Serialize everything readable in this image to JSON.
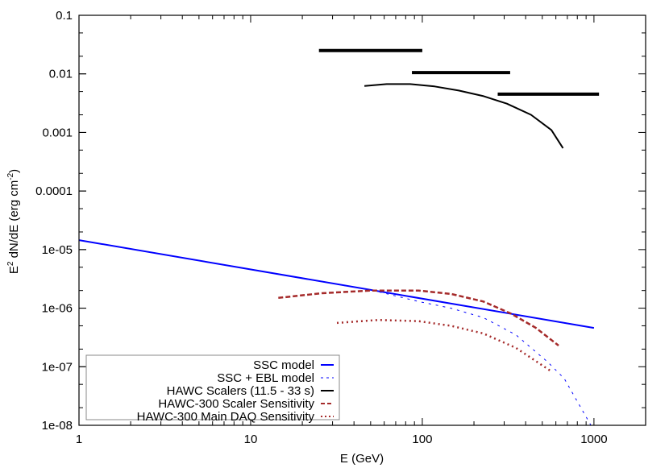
{
  "chart_data": {
    "type": "line",
    "title": "",
    "xlabel": "E (GeV)",
    "ylabel": "E^2 dN/dE (erg cm^-2)",
    "ylabel_parts": {
      "base": "E",
      "sup1": "2",
      "mid": " dN/dE (erg cm",
      "sup2": "-2",
      "end": ")"
    },
    "xscale": "log",
    "yscale": "log",
    "xlim": [
      1,
      2000
    ],
    "ylim": [
      1e-08,
      0.1
    ],
    "grid": false,
    "legend_position": "lower left",
    "x_ticks": [
      {
        "value": 1,
        "label": "1"
      },
      {
        "value": 10,
        "label": "10"
      },
      {
        "value": 100,
        "label": "100"
      },
      {
        "value": 1000,
        "label": "1000"
      }
    ],
    "y_ticks": [
      {
        "value": 0.1,
        "label": "0.1"
      },
      {
        "value": 0.01,
        "label": "0.01"
      },
      {
        "value": 0.001,
        "label": "0.001"
      },
      {
        "value": 0.0001,
        "label": "0.0001"
      },
      {
        "value": 1e-05,
        "label": "1e-05"
      },
      {
        "value": 1e-06,
        "label": "1e-06"
      },
      {
        "value": 1e-07,
        "label": "1e-07"
      },
      {
        "value": 1e-08,
        "label": "1e-08"
      }
    ],
    "series": [
      {
        "name": "SSC model",
        "color": "#0000ff",
        "style": "solid",
        "width": 2,
        "x": [
          1,
          1000
        ],
        "y": [
          1.45e-05,
          4.6e-07
        ]
      },
      {
        "name": "SSC + EBL model",
        "color": "#0000ff",
        "style": "dashed-fine",
        "width": 1,
        "x": [
          1,
          52,
          95,
          147,
          227,
          351,
          538,
          671,
          960
        ],
        "y": [
          1.45e-05,
          2e-06,
          1.3e-06,
          1e-06,
          6.9e-07,
          3.5e-07,
          1.2e-07,
          6.3e-08,
          1e-08
        ]
      },
      {
        "name": "HAWC Scalers (11.5 - 33 s)",
        "color": "#000000",
        "style": "solid",
        "width": 2,
        "x": [
          46,
          62,
          85,
          118,
          163,
          225,
          311,
          430,
          565,
          660
        ],
        "y": [
          0.0062,
          0.0067,
          0.0067,
          0.0061,
          0.0052,
          0.0042,
          0.0031,
          0.002,
          0.0011,
          0.00054
        ]
      },
      {
        "name": "HAWC-300 Scaler Sensitivity",
        "color": "#a52a2a",
        "style": "dashed",
        "width": 2.5,
        "x": [
          14.5,
          26,
          50,
          95,
          147,
          227,
          331,
          459,
          622
        ],
        "y": [
          1.5e-06,
          1.8e-06,
          2e-06,
          2e-06,
          1.75e-06,
          1.3e-06,
          8e-07,
          4.6e-07,
          2.3e-07
        ]
      },
      {
        "name": "HAWC-300 Main DAQ Sensitivity",
        "color": "#a52a2a",
        "style": "dotted",
        "width": 2.5,
        "x": [
          31.8,
          55.6,
          95,
          147,
          227,
          351,
          555
        ],
        "y": [
          5.6e-07,
          6.3e-07,
          6e-07,
          5e-07,
          3.7e-07,
          2.1e-07,
          8.6e-08
        ]
      }
    ],
    "bars": {
      "name": "HAWC Scalers (11.5 - 33 s) upper limits",
      "color": "#000000",
      "segments": [
        {
          "x_start": 25,
          "x_end": 100,
          "y": 0.025
        },
        {
          "x_start": 87,
          "x_end": 325,
          "y": 0.0105
        },
        {
          "x_start": 275,
          "x_end": 1070,
          "y": 0.0045
        }
      ]
    },
    "legend": [
      {
        "label": "SSC model",
        "color": "#0000ff",
        "style": "solid"
      },
      {
        "label": "SSC + EBL model",
        "color": "#0000ff",
        "style": "dashed-fine"
      },
      {
        "label": "HAWC Scalers (11.5 - 33 s)",
        "color": "#000000",
        "style": "solid"
      },
      {
        "label": "HAWC-300 Scaler Sensitivity",
        "color": "#a52a2a",
        "style": "dashed"
      },
      {
        "label": "HAWC-300 Main DAQ Sensitivity",
        "color": "#a52a2a",
        "style": "dotted"
      }
    ]
  }
}
